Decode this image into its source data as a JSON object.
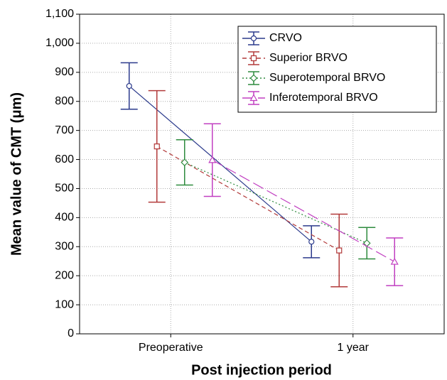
{
  "chart_data": {
    "type": "line",
    "x_label": "Post injection period",
    "y_label": "Mean value of CMT (μm)",
    "categories": [
      "Preoperative",
      "1 year"
    ],
    "series": [
      {
        "name": "CRVO",
        "color": "#2b3a8c",
        "dash": "solid",
        "marker": "circle",
        "values": [
          853,
          317
        ],
        "errors": [
          80,
          55
        ]
      },
      {
        "name": "Superior BRVO",
        "color": "#b23a3a",
        "dash": "dashed",
        "marker": "square",
        "values": [
          645,
          287
        ],
        "errors": [
          192,
          125
        ]
      },
      {
        "name": "Superotemporal BRVO",
        "color": "#2e8b3e",
        "dash": "dotted",
        "marker": "diamond",
        "values": [
          590,
          312
        ],
        "errors": [
          78,
          54
        ]
      },
      {
        "name": "Inferotemporal BRVO",
        "color": "#c13fc1",
        "dash": "longdash",
        "marker": "triangle",
        "values": [
          598,
          248
        ],
        "errors": [
          125,
          82
        ]
      }
    ],
    "ylim": [
      0,
      1100
    ],
    "yticks": [
      0,
      100,
      200,
      300,
      400,
      500,
      600,
      700,
      800,
      900,
      {
        "value": 1000,
        "label": "1,000"
      },
      {
        "value": 1100,
        "label": "1,100"
      }
    ],
    "grid": true,
    "legend": "upper right"
  }
}
